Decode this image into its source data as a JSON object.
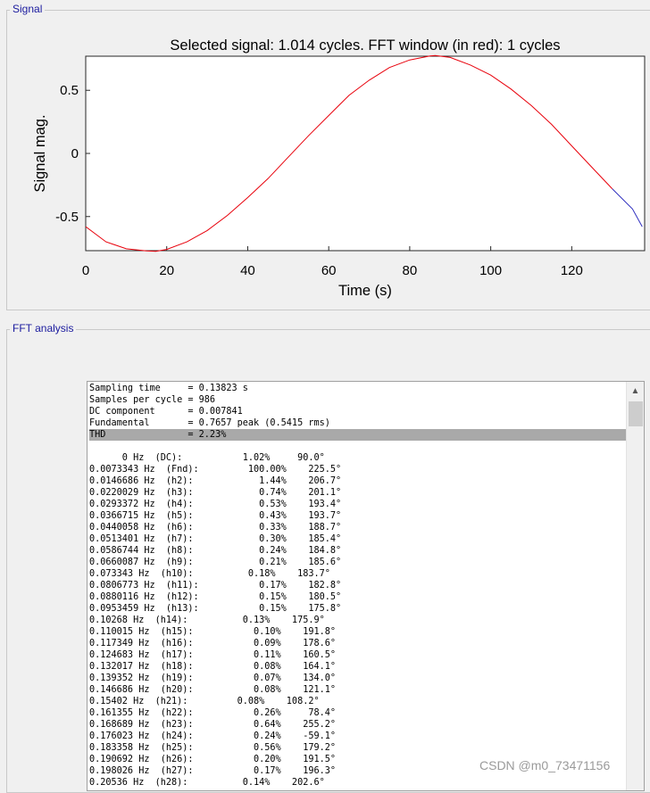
{
  "signal_panel": {
    "title": "Signal"
  },
  "fft_panel": {
    "title": "FFT analysis"
  },
  "watermark": "CSDN @m0_73471156",
  "chart_data": {
    "type": "line",
    "title": "Selected signal: 1.014 cycles. FFT window (in red): 1 cycles",
    "xlabel": "Time (s)",
    "ylabel": "Signal mag.",
    "xlim": [
      0,
      138
    ],
    "ylim": [
      -0.77,
      0.77
    ],
    "xticks": [
      "0",
      "20",
      "40",
      "60",
      "80",
      "100",
      "120"
    ],
    "xtick_values": [
      0,
      20,
      40,
      60,
      80,
      100,
      120
    ],
    "yticks": [
      "0.5",
      "0",
      "-0.5"
    ],
    "ytick_values": [
      0.5,
      0,
      -0.5
    ],
    "grid": false,
    "colors": {
      "window": "#e8000b",
      "selected": "#2f2fbf"
    },
    "series": [
      {
        "x": [
          0,
          5,
          10,
          15,
          17.3,
          20,
          25,
          30,
          35,
          40,
          45,
          50,
          55,
          60,
          65,
          70,
          75,
          80,
          85,
          86.3,
          90,
          95,
          100,
          105,
          110,
          115,
          120,
          125,
          130,
          135,
          137.4
        ],
        "y": [
          -0.58,
          -0.7,
          -0.755,
          -0.772,
          -0.775,
          -0.76,
          -0.7,
          -0.61,
          -0.49,
          -0.35,
          -0.2,
          -0.03,
          0.14,
          0.3,
          0.46,
          0.58,
          0.68,
          0.74,
          0.772,
          0.775,
          0.76,
          0.7,
          0.62,
          0.51,
          0.38,
          0.23,
          0.06,
          -0.11,
          -0.28,
          -0.44,
          -0.58
        ],
        "split_x": 133.5
      }
    ]
  },
  "fft_list": {
    "selected_index": 4,
    "lines": [
      "Sampling time     = 0.13823 s",
      "Samples per cycle = 986",
      "DC component      = 0.007841",
      "Fundamental       = 0.7657 peak (0.5415 rms)",
      "THD               = 2.23%",
      "",
      "      0 Hz  (DC):           1.02%     90.0°",
      "0.0073343 Hz  (Fnd):         100.00%    225.5°",
      "0.0146686 Hz  (h2):            1.44%    206.7°",
      "0.0220029 Hz  (h3):            0.74%    201.1°",
      "0.0293372 Hz  (h4):            0.53%    193.4°",
      "0.0366715 Hz  (h5):            0.43%    193.7°",
      "0.0440058 Hz  (h6):            0.33%    188.7°",
      "0.0513401 Hz  (h7):            0.30%    185.4°",
      "0.0586744 Hz  (h8):            0.24%    184.8°",
      "0.0660087 Hz  (h9):            0.21%    185.6°",
      "0.073343 Hz  (h10):          0.18%    183.7°",
      "0.0806773 Hz  (h11):           0.17%    182.8°",
      "0.0880116 Hz  (h12):           0.15%    180.5°",
      "0.0953459 Hz  (h13):           0.15%    175.8°",
      "0.10268 Hz  (h14):          0.13%    175.9°",
      "0.110015 Hz  (h15):           0.10%    191.8°",
      "0.117349 Hz  (h16):           0.09%    178.6°",
      "0.124683 Hz  (h17):           0.11%    160.5°",
      "0.132017 Hz  (h18):           0.08%    164.1°",
      "0.139352 Hz  (h19):           0.07%    134.0°",
      "0.146686 Hz  (h20):           0.08%    121.1°",
      "0.15402 Hz  (h21):         0.08%    108.2°",
      "0.161355 Hz  (h22):           0.26%     78.4°",
      "0.168689 Hz  (h23):           0.64%    255.2°",
      "0.176023 Hz  (h24):           0.24%    -59.1°",
      "0.183358 Hz  (h25):           0.56%    179.2°",
      "0.190692 Hz  (h26):           0.20%    191.5°",
      "0.198026 Hz  (h27):           0.17%    196.3°",
      "0.20536 Hz  (h28):          0.14%    202.6°"
    ]
  }
}
